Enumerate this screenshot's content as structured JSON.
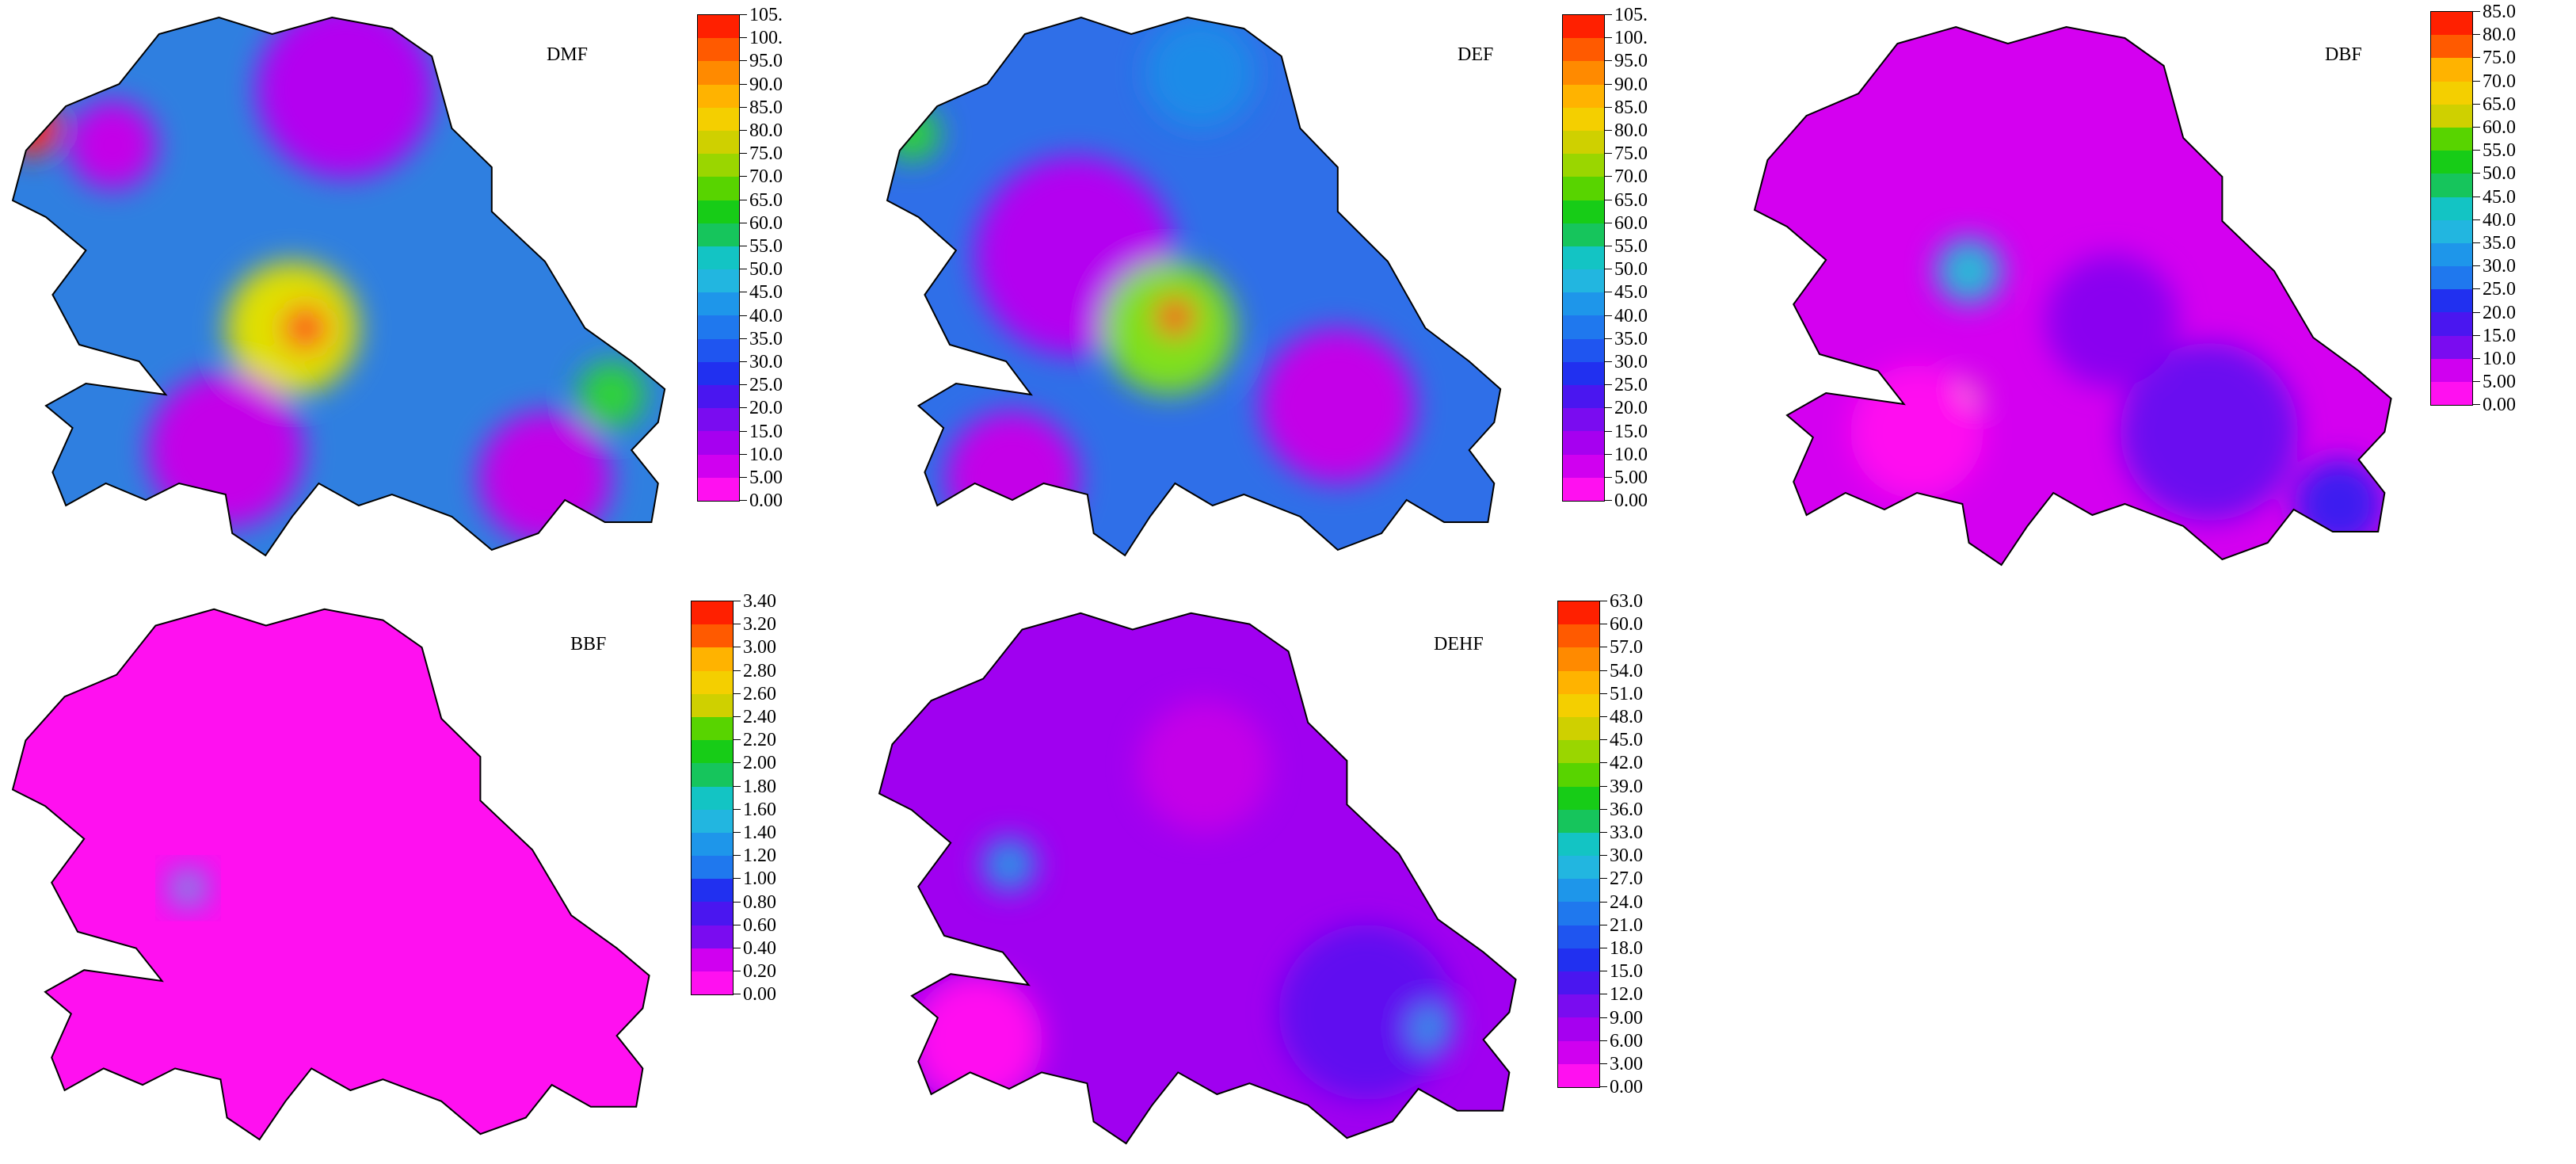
{
  "maps": [
    {
      "title": "DMF",
      "legend": [
        "105.",
        "100.",
        "95.0",
        "90.0",
        "85.0",
        "80.0",
        "75.0",
        "70.0",
        "65.0",
        "60.0",
        "55.0",
        "50.0",
        "45.0",
        "40.0",
        "35.0",
        "30.0",
        "25.0",
        "20.0",
        "15.0",
        "10.0",
        "5.00",
        "0.00"
      ],
      "base_color": "#2f7fe0",
      "blobs": [
        {
          "c": "#b400f0",
          "r": 0.16,
          "p": [
            0.5,
            0.15
          ]
        },
        {
          "c": "#e0e000",
          "r": 0.12,
          "p": [
            0.42,
            0.58
          ]
        },
        {
          "c": "#ff2a1a",
          "r": 0.04,
          "p": [
            0.44,
            0.58
          ]
        },
        {
          "c": "#ff2a1a",
          "r": 0.05,
          "p": [
            0.03,
            0.22
          ]
        },
        {
          "c": "#c400e8",
          "r": 0.14,
          "p": [
            0.32,
            0.8
          ]
        },
        {
          "c": "#c400e8",
          "r": 0.12,
          "p": [
            0.8,
            0.85
          ]
        },
        {
          "c": "#2dd13a",
          "r": 0.06,
          "p": [
            0.9,
            0.7
          ]
        },
        {
          "c": "#c400e8",
          "r": 0.08,
          "p": [
            0.15,
            0.25
          ]
        }
      ]
    },
    {
      "title": "DEF",
      "legend": [
        "105.",
        "100.",
        "95.0",
        "90.0",
        "85.0",
        "80.0",
        "75.0",
        "70.0",
        "65.0",
        "60.0",
        "55.0",
        "50.0",
        "45.0",
        "40.0",
        "35.0",
        "30.0",
        "25.0",
        "20.0",
        "15.0",
        "10.0",
        "5.00",
        "0.00"
      ],
      "base_color": "#2f6fe8",
      "blobs": [
        {
          "c": "#b400f0",
          "r": 0.18,
          "p": [
            0.3,
            0.45
          ]
        },
        {
          "c": "#7fe01a",
          "r": 0.12,
          "p": [
            0.45,
            0.58
          ]
        },
        {
          "c": "#ff2a1a",
          "r": 0.035,
          "p": [
            0.46,
            0.56
          ]
        },
        {
          "c": "#2dd13a",
          "r": 0.05,
          "p": [
            0.04,
            0.23
          ]
        },
        {
          "c": "#c400e8",
          "r": 0.14,
          "p": [
            0.72,
            0.72
          ]
        },
        {
          "c": "#c400e8",
          "r": 0.12,
          "p": [
            0.2,
            0.85
          ]
        },
        {
          "c": "#1f8be8",
          "r": 0.1,
          "p": [
            0.5,
            0.12
          ]
        }
      ]
    },
    {
      "title": "DBF",
      "legend": [
        "85.0",
        "80.0",
        "75.0",
        "70.0",
        "65.0",
        "60.0",
        "55.0",
        "50.0",
        "45.0",
        "40.0",
        "35.0",
        "30.0",
        "25.0",
        "20.0",
        "15.0",
        "10.0",
        "5.00",
        "0.00"
      ],
      "base_color": "#d400f0",
      "blobs": [
        {
          "c": "#6a10f0",
          "r": 0.16,
          "p": [
            0.7,
            0.75
          ]
        },
        {
          "c": "#8a00f0",
          "r": 0.12,
          "p": [
            0.55,
            0.55
          ]
        },
        {
          "c": "#2bb6d8",
          "r": 0.06,
          "p": [
            0.33,
            0.46
          ]
        },
        {
          "c": "#e0e000",
          "r": 0.03,
          "p": [
            0.32,
            0.69
          ]
        },
        {
          "c": "#3c1cf0",
          "r": 0.08,
          "p": [
            0.9,
            0.88
          ]
        },
        {
          "c": "#ff10f0",
          "r": 0.12,
          "p": [
            0.25,
            0.75
          ]
        }
      ]
    },
    {
      "title": "BBF",
      "legend": [
        "3.40",
        "3.20",
        "3.00",
        "2.80",
        "2.60",
        "2.40",
        "2.20",
        "2.00",
        "1.80",
        "1.60",
        "1.40",
        "1.20",
        "1.00",
        "0.80",
        "0.60",
        "0.40",
        "0.20",
        "0.00"
      ],
      "base_color": "#ff10f0",
      "blobs": [
        {
          "c": "#b400f0",
          "r": 0.05,
          "p": [
            0.27,
            0.53
          ]
        },
        {
          "c": "#2bb6d8",
          "r": 0.02,
          "p": [
            0.27,
            0.53
          ]
        }
      ]
    },
    {
      "title": "DEHF",
      "legend": [
        "63.0",
        "60.0",
        "57.0",
        "54.0",
        "51.0",
        "48.0",
        "45.0",
        "42.0",
        "39.0",
        "36.0",
        "33.0",
        "30.0",
        "27.0",
        "24.0",
        "21.0",
        "18.0",
        "15.0",
        "12.0",
        "9.00",
        "6.00",
        "3.00",
        "0.00"
      ],
      "base_color": "#a000f0",
      "blobs": [
        {
          "c": "#6010f0",
          "r": 0.16,
          "p": [
            0.75,
            0.75
          ]
        },
        {
          "c": "#ff10f0",
          "r": 0.12,
          "p": [
            0.15,
            0.8
          ]
        },
        {
          "c": "#2e8ee8",
          "r": 0.05,
          "p": [
            0.2,
            0.48
          ]
        },
        {
          "c": "#2e8ee8",
          "r": 0.04,
          "p": [
            0.85,
            0.78
          ]
        },
        {
          "c": "#c400e8",
          "r": 0.12,
          "p": [
            0.5,
            0.3
          ]
        }
      ]
    }
  ],
  "palette": [
    "#ff2000",
    "#ff5a00",
    "#ff8a00",
    "#ffb300",
    "#f4cf00",
    "#cfd000",
    "#9ad600",
    "#58d400",
    "#17cc17",
    "#16c55c",
    "#10c69a",
    "#13c4c4",
    "#22b6e0",
    "#1e96ea",
    "#1f78ee",
    "#1f55f0",
    "#2130f0",
    "#4a16f0",
    "#7a0cf0",
    "#a600f0",
    "#d000f0",
    "#ff10f0"
  ]
}
